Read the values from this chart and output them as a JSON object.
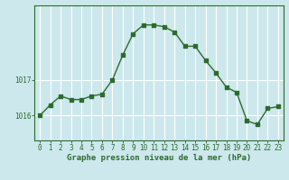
{
  "x": [
    0,
    1,
    2,
    3,
    4,
    5,
    6,
    7,
    8,
    9,
    10,
    11,
    12,
    13,
    14,
    15,
    16,
    17,
    18,
    19,
    20,
    21,
    22,
    23
  ],
  "y": [
    1016.0,
    1016.3,
    1016.55,
    1016.45,
    1016.45,
    1016.55,
    1016.6,
    1017.0,
    1017.7,
    1018.3,
    1018.55,
    1018.55,
    1018.5,
    1018.35,
    1017.95,
    1017.95,
    1017.55,
    1017.2,
    1016.8,
    1016.65,
    1015.85,
    1015.75,
    1016.2,
    1016.25
  ],
  "line_color": "#2d6b2d",
  "marker": "s",
  "markersize": 2.2,
  "linewidth": 1.0,
  "bg_color": "#cce8ec",
  "grid_color": "#ffffff",
  "xlabel": "Graphe pression niveau de la mer (hPa)",
  "xlabel_fontsize": 6.5,
  "tick_fontsize": 5.5,
  "ytick_labels": [
    "1016",
    "1017"
  ],
  "ytick_values": [
    1016,
    1017
  ],
  "ylim_min": 1015.3,
  "ylim_max": 1019.1,
  "xlim_min": -0.5,
  "xlim_max": 23.5
}
